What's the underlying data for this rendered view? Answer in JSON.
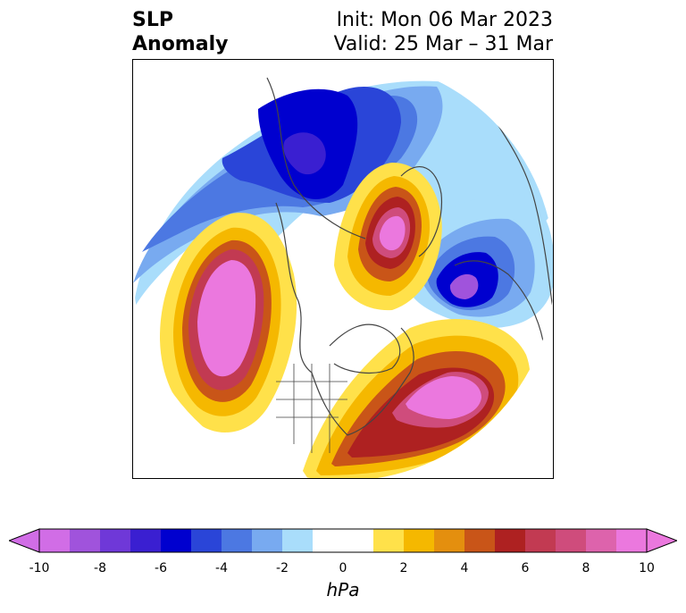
{
  "title": {
    "left_line1": "SLP",
    "left_line2": "Anomaly",
    "right_line1": "Init: Mon 06 Mar 2023",
    "right_line2": "Valid: 25 Mar – 31 Mar"
  },
  "colorbar": {
    "units": "hPa",
    "ticks": [
      "-10",
      "-8",
      "-6",
      "-4",
      "-2",
      "0",
      "2",
      "4",
      "6",
      "8",
      "10"
    ],
    "colors": [
      "#d16de6",
      "#a053dc",
      "#6f38d8",
      "#3a1fd1",
      "#0000cf",
      "#2a45d8",
      "#4c78e2",
      "#78aaf0",
      "#a9ddfb",
      "#ffffff",
      "#ffffff",
      "#ffe14a",
      "#f5b800",
      "#e48f0e",
      "#c95518",
      "#ae2121",
      "#c23a52",
      "#cf4c7c",
      "#dd63ac",
      "#eb78de"
    ],
    "extend_low_color": "#d16de6",
    "extend_high_color": "#eb78de"
  },
  "map": {
    "projection": "north polar stereographic",
    "features": [
      "coastlines",
      "country borders",
      "US state borders"
    ]
  }
}
